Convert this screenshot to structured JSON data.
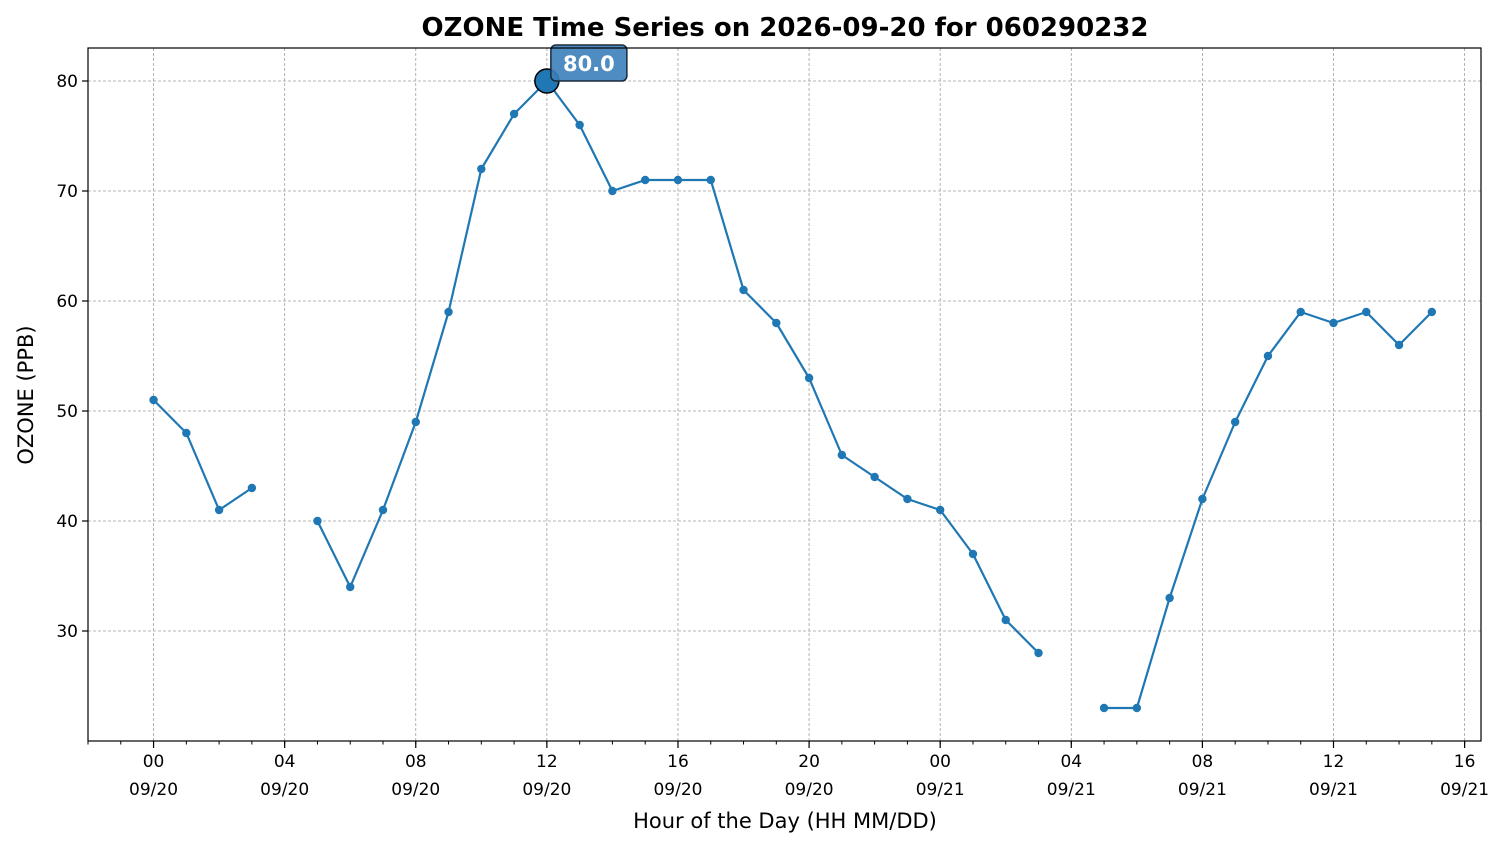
{
  "chart_data": {
    "type": "line",
    "title": "OZONE Time Series on 2026-09-20 for 060290232",
    "xlabel": "Hour of the Day (HH MM/DD)",
    "ylabel": "OZONE (PPB)",
    "grid": true,
    "ylim": [
      20,
      83
    ],
    "xlim": [
      "2026-09-19 22:00",
      "2026-09-21 16:30"
    ],
    "x_ticks": [
      {
        "time": "2026-09-20 00:00",
        "hour": "00",
        "date": "09/20"
      },
      {
        "time": "2026-09-20 04:00",
        "hour": "04",
        "date": "09/20"
      },
      {
        "time": "2026-09-20 08:00",
        "hour": "08",
        "date": "09/20"
      },
      {
        "time": "2026-09-20 12:00",
        "hour": "12",
        "date": "09/20"
      },
      {
        "time": "2026-09-20 16:00",
        "hour": "16",
        "date": "09/20"
      },
      {
        "time": "2026-09-20 20:00",
        "hour": "20",
        "date": "09/20"
      },
      {
        "time": "2026-09-21 00:00",
        "hour": "00",
        "date": "09/21"
      },
      {
        "time": "2026-09-21 04:00",
        "hour": "04",
        "date": "09/21"
      },
      {
        "time": "2026-09-21 08:00",
        "hour": "08",
        "date": "09/21"
      },
      {
        "time": "2026-09-21 12:00",
        "hour": "12",
        "date": "09/21"
      },
      {
        "time": "2026-09-21 16:00",
        "hour": "16",
        "date": "09/21"
      }
    ],
    "y_ticks": [
      30,
      40,
      50,
      60,
      70,
      80
    ],
    "series": [
      {
        "color": "#1f77b4",
        "points": [
          [
            "2026-09-20 00:00",
            51
          ],
          [
            "2026-09-20 01:00",
            48
          ],
          [
            "2026-09-20 02:00",
            41
          ],
          [
            "2026-09-20 03:00",
            43
          ],
          [
            "2026-09-20 04:00",
            null
          ],
          [
            "2026-09-20 05:00",
            40
          ],
          [
            "2026-09-20 06:00",
            34
          ],
          [
            "2026-09-20 07:00",
            41
          ],
          [
            "2026-09-20 08:00",
            49
          ],
          [
            "2026-09-20 09:00",
            59
          ],
          [
            "2026-09-20 10:00",
            72
          ],
          [
            "2026-09-20 11:00",
            77
          ],
          [
            "2026-09-20 12:00",
            80
          ],
          [
            "2026-09-20 13:00",
            76
          ],
          [
            "2026-09-20 14:00",
            70
          ],
          [
            "2026-09-20 15:00",
            71
          ],
          [
            "2026-09-20 16:00",
            71
          ],
          [
            "2026-09-20 17:00",
            71
          ],
          [
            "2026-09-20 18:00",
            61
          ],
          [
            "2026-09-20 19:00",
            58
          ],
          [
            "2026-09-20 20:00",
            53
          ],
          [
            "2026-09-20 21:00",
            46
          ],
          [
            "2026-09-20 22:00",
            44
          ],
          [
            "2026-09-20 23:00",
            42
          ],
          [
            "2026-09-21 00:00",
            41
          ],
          [
            "2026-09-21 01:00",
            37
          ],
          [
            "2026-09-21 02:00",
            31
          ],
          [
            "2026-09-21 03:00",
            28
          ],
          [
            "2026-09-21 04:00",
            null
          ],
          [
            "2026-09-21 05:00",
            23
          ],
          [
            "2026-09-21 06:00",
            23
          ],
          [
            "2026-09-21 07:00",
            33
          ],
          [
            "2026-09-21 08:00",
            42
          ],
          [
            "2026-09-21 09:00",
            49
          ],
          [
            "2026-09-21 10:00",
            55
          ],
          [
            "2026-09-21 11:00",
            59
          ],
          [
            "2026-09-21 12:00",
            58
          ],
          [
            "2026-09-21 13:00",
            59
          ],
          [
            "2026-09-21 14:00",
            56
          ],
          [
            "2026-09-21 15:00",
            59
          ]
        ]
      }
    ],
    "annotation": {
      "time": "2026-09-20 12:00",
      "value": 80,
      "text": "80.0"
    }
  }
}
